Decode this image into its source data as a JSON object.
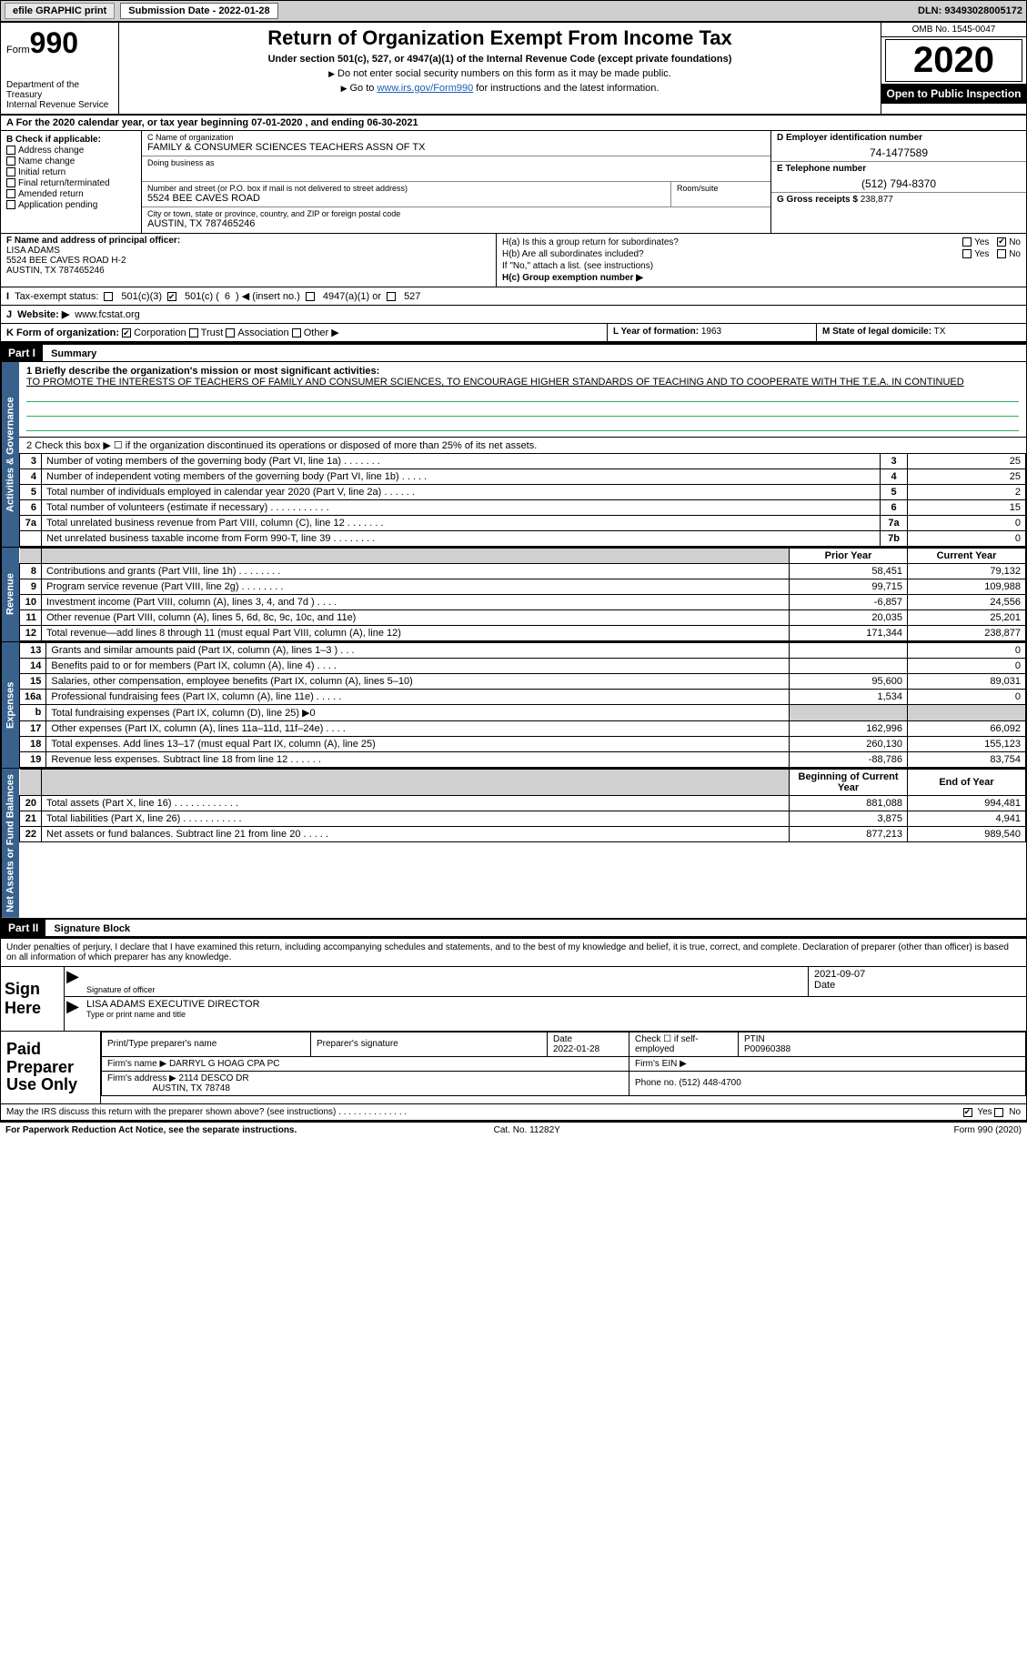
{
  "top": {
    "efile": "efile GRAPHIC print",
    "submission_label": "Submission Date - 2022-01-28",
    "dln": "DLN: 93493028005172"
  },
  "header": {
    "form_word": "Form",
    "form_num": "990",
    "dept": "Department of the Treasury\nInternal Revenue Service",
    "title": "Return of Organization Exempt From Income Tax",
    "subtitle": "Under section 501(c), 527, or 4947(a)(1) of the Internal Revenue Code (except private foundations)",
    "note1": "Do not enter social security numbers on this form as it may be made public.",
    "note2_pre": "Go to ",
    "note2_link": "www.irs.gov/Form990",
    "note2_post": " for instructions and the latest information.",
    "omb": "OMB No. 1545-0047",
    "year": "2020",
    "inspect": "Open to Public Inspection"
  },
  "rowA": "A For the 2020 calendar year, or tax year beginning 07-01-2020    , and ending 06-30-2021",
  "B": {
    "label": "B Check if applicable:",
    "opts": [
      "Address change",
      "Name change",
      "Initial return",
      "Final return/terminated",
      "Amended return",
      "Application pending"
    ]
  },
  "C": {
    "name_lbl": "C Name of organization",
    "name_val": "FAMILY & CONSUMER SCIENCES TEACHERS ASSN OF TX",
    "dba_lbl": "Doing business as",
    "dba_val": "",
    "addr_lbl": "Number and street (or P.O. box if mail is not delivered to street address)",
    "room_lbl": "Room/suite",
    "addr_val": "5524 BEE CAVES ROAD",
    "city_lbl": "City or town, state or province, country, and ZIP or foreign postal code",
    "city_val": "AUSTIN, TX  787465246"
  },
  "D": {
    "ein_lbl": "D Employer identification number",
    "ein_val": "74-1477589",
    "tel_lbl": "E Telephone number",
    "tel_val": "(512) 794-8370",
    "gross_lbl": "G Gross receipts $",
    "gross_val": "238,877"
  },
  "F": {
    "lbl": "F Name and address of principal officer:",
    "name": "LISA ADAMS",
    "addr1": "5524 BEE CAVES ROAD H-2",
    "addr2": "AUSTIN, TX  787465246"
  },
  "H": {
    "a": "H(a)  Is this a group return for subordinates?",
    "a_no_checked": true,
    "b": "H(b)  Are all subordinates included?",
    "b_note": "If \"No,\" attach a list. (see instructions)",
    "c": "H(c)  Group exemption number ▶"
  },
  "I": {
    "lbl": "Tax-exempt status:",
    "opt1": "501(c)(3)",
    "opt2_pre": "501(c) (",
    "opt2_num": "6",
    "opt2_post": ") ◀ (insert no.)",
    "opt3": "4947(a)(1) or",
    "opt4": "527"
  },
  "J": {
    "lbl": "Website: ▶",
    "val": "www.fcstat.org"
  },
  "K": {
    "lbl": "K Form of organization:",
    "opts": [
      "Corporation",
      "Trust",
      "Association",
      "Other ▶"
    ],
    "checked": 0
  },
  "L": {
    "lbl": "L Year of formation:",
    "val": "1963"
  },
  "M": {
    "lbl": "M State of legal domicile:",
    "val": "TX"
  },
  "part1": {
    "hdr": "Part I",
    "title": "Summary",
    "desc_lbl": "1  Briefly describe the organization's mission or most significant activities:",
    "desc_val": "TO PROMOTE THE INTERESTS OF TEACHERS OF FAMILY AND CONSUMER SCIENCES, TO ENCOURAGE HIGHER STANDARDS OF TEACHING AND TO COOPERATE WITH THE T.E.A. IN CONTINUED",
    "line2": "2   Check this box ▶ ☐  if the organization discontinued its operations or disposed of more than 25% of its net assets.",
    "gov_rows": [
      {
        "n": "3",
        "lab": "Number of voting members of the governing body (Part VI, line 1a)  .    .    .    .    .    .    .",
        "box": "3",
        "val": "25"
      },
      {
        "n": "4",
        "lab": "Number of independent voting members of the governing body (Part VI, line 1b)  .    .    .    .    .",
        "box": "4",
        "val": "25"
      },
      {
        "n": "5",
        "lab": "Total number of individuals employed in calendar year 2020 (Part V, line 2a)  .    .    .    .    .    .",
        "box": "5",
        "val": "2"
      },
      {
        "n": "6",
        "lab": "Total number of volunteers (estimate if necessary)  .    .    .    .    .    .    .    .    .    .    .",
        "box": "6",
        "val": "15"
      },
      {
        "n": "7a",
        "lab": "Total unrelated business revenue from Part VIII, column (C), line 12  .    .    .    .    .    .    .",
        "box": "7a",
        "val": "0"
      },
      {
        "n": "",
        "lab": "Net unrelated business taxable income from Form 990-T, line 39  .    .    .    .    .    .    .    .",
        "box": "7b",
        "val": "0"
      }
    ],
    "col_prior": "Prior Year",
    "col_curr": "Current Year",
    "rev_rows": [
      {
        "n": "8",
        "lab": "Contributions and grants (Part VIII, line 1h)  .    .    .    .    .    .    .    .",
        "p": "58,451",
        "c": "79,132"
      },
      {
        "n": "9",
        "lab": "Program service revenue (Part VIII, line 2g)  .    .    .    .    .    .    .    .",
        "p": "99,715",
        "c": "109,988"
      },
      {
        "n": "10",
        "lab": "Investment income (Part VIII, column (A), lines 3, 4, and 7d )  .    .    .    .",
        "p": "-6,857",
        "c": "24,556"
      },
      {
        "n": "11",
        "lab": "Other revenue (Part VIII, column (A), lines 5, 6d, 8c, 9c, 10c, and 11e)",
        "p": "20,035",
        "c": "25,201"
      },
      {
        "n": "12",
        "lab": "Total revenue—add lines 8 through 11 (must equal Part VIII, column (A), line 12)",
        "p": "171,344",
        "c": "238,877"
      }
    ],
    "exp_rows": [
      {
        "n": "13",
        "lab": "Grants and similar amounts paid (Part IX, column (A), lines 1–3 )  .    .    .",
        "p": "",
        "c": "0"
      },
      {
        "n": "14",
        "lab": "Benefits paid to or for members (Part IX, column (A), line 4)  .    .    .    .",
        "p": "",
        "c": "0"
      },
      {
        "n": "15",
        "lab": "Salaries, other compensation, employee benefits (Part IX, column (A), lines 5–10)",
        "p": "95,600",
        "c": "89,031"
      },
      {
        "n": "16a",
        "lab": "Professional fundraising fees (Part IX, column (A), line 11e)  .    .    .    .    .",
        "p": "1,534",
        "c": "0"
      },
      {
        "n": "b",
        "lab": "Total fundraising expenses (Part IX, column (D), line 25) ▶0",
        "p": "SHADE",
        "c": "SHADE"
      },
      {
        "n": "17",
        "lab": "Other expenses (Part IX, column (A), lines 11a–11d, 11f–24e)  .    .    .    .",
        "p": "162,996",
        "c": "66,092"
      },
      {
        "n": "18",
        "lab": "Total expenses. Add lines 13–17 (must equal Part IX, column (A), line 25)",
        "p": "260,130",
        "c": "155,123"
      },
      {
        "n": "19",
        "lab": "Revenue less expenses. Subtract line 18 from line 12  .    .    .    .    .    .",
        "p": "-88,786",
        "c": "83,754"
      }
    ],
    "col_begin": "Beginning of Current Year",
    "col_end": "End of Year",
    "na_rows": [
      {
        "n": "20",
        "lab": "Total assets (Part X, line 16)  .    .    .    .    .    .    .    .    .    .    .    .",
        "p": "881,088",
        "c": "994,481"
      },
      {
        "n": "21",
        "lab": "Total liabilities (Part X, line 26)  .    .    .    .    .    .    .    .    .    .    .",
        "p": "3,875",
        "c": "4,941"
      },
      {
        "n": "22",
        "lab": "Net assets or fund balances. Subtract line 21 from line 20  .    .    .    .    .",
        "p": "877,213",
        "c": "989,540"
      }
    ]
  },
  "part2": {
    "hdr": "Part II",
    "title": "Signature Block",
    "declare": "Under penalties of perjury, I declare that I have examined this return, including accompanying schedules and statements, and to the best of my knowledge and belief, it is true, correct, and complete. Declaration of preparer (other than officer) is based on all information of which preparer has any knowledge."
  },
  "sign": {
    "label": "Sign Here",
    "sig_lbl": "Signature of officer",
    "date_val": "2021-09-07",
    "date_lbl": "Date",
    "name_val": "LISA ADAMS  EXECUTIVE DIRECTOR",
    "name_lbl": "Type or print name and title"
  },
  "prep": {
    "label": "Paid Preparer Use Only",
    "c1": "Print/Type preparer's name",
    "c2": "Preparer's signature",
    "c3_lbl": "Date",
    "c3_val": "2022-01-28",
    "c4": "Check ☐ if self-employed",
    "c5_lbl": "PTIN",
    "c5_val": "P00960388",
    "firm_name_lbl": "Firm's name    ▶",
    "firm_name_val": "DARRYL G HOAG CPA PC",
    "firm_ein_lbl": "Firm's EIN ▶",
    "firm_addr_lbl": "Firm's address ▶",
    "firm_addr_val1": "2114 DESCO DR",
    "firm_addr_val2": "AUSTIN, TX  78748",
    "phone_lbl": "Phone no.",
    "phone_val": "(512) 448-4700"
  },
  "footer": {
    "discuss": "May the IRS discuss this return with the preparer shown above? (see instructions)  .    .    .    .    .    .    .    .    .    .    .    .    .    .",
    "yes_checked": true,
    "pra": "For Paperwork Reduction Act Notice, see the separate instructions.",
    "cat": "Cat. No. 11282Y",
    "form": "Form 990 (2020)"
  },
  "side_labels": {
    "gov": "Activities & Governance",
    "rev": "Revenue",
    "exp": "Expenses",
    "na": "Net Assets or Fund Balances"
  },
  "colors": {
    "side_bg": "#38618c",
    "link": "#1a5fb4"
  }
}
